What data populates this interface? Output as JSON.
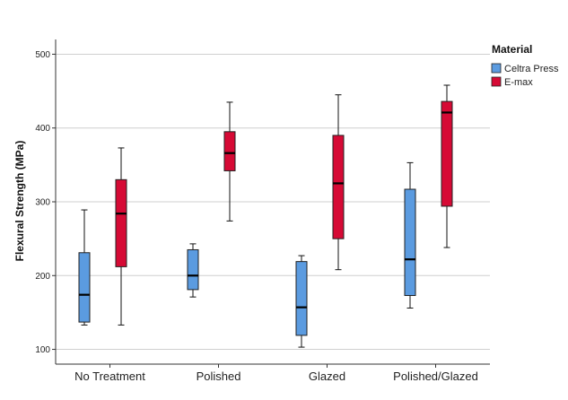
{
  "chart_data": {
    "type": "boxplot",
    "ylabel": "Flexural Strength (MPa)",
    "xlabel": "",
    "ylim": [
      80,
      520
    ],
    "yticks": [
      100,
      200,
      300,
      400,
      500
    ],
    "grid": "horizontal",
    "legend": {
      "title": "Material",
      "placement": "top-right",
      "entries": [
        {
          "name": "Celtra Press",
          "color": "#5B9BE0"
        },
        {
          "name": "E-max",
          "color": "#D60A35"
        }
      ]
    },
    "categories": [
      "No Treatment",
      "Polished",
      "Glazed",
      "Polished/Glazed"
    ],
    "series": [
      {
        "name": "Celtra Press",
        "color": "#5B9BE0",
        "boxes": [
          {
            "min": 133,
            "q1": 137,
            "median": 174,
            "q3": 231,
            "max": 289
          },
          {
            "min": 171,
            "q1": 181,
            "median": 200,
            "q3": 235,
            "max": 243
          },
          {
            "min": 103,
            "q1": 119,
            "median": 157,
            "q3": 219,
            "max": 227
          },
          {
            "min": 156,
            "q1": 173,
            "median": 222,
            "q3": 317,
            "max": 353
          }
        ]
      },
      {
        "name": "E-max",
        "color": "#D60A35",
        "boxes": [
          {
            "min": 133,
            "q1": 212,
            "median": 284,
            "q3": 330,
            "max": 373
          },
          {
            "min": 274,
            "q1": 342,
            "median": 366,
            "q3": 395,
            "max": 435
          },
          {
            "min": 208,
            "q1": 250,
            "median": 325,
            "q3": 390,
            "max": 445
          },
          {
            "min": 238,
            "q1": 294,
            "median": 421,
            "q3": 436,
            "max": 458
          }
        ]
      }
    ]
  }
}
